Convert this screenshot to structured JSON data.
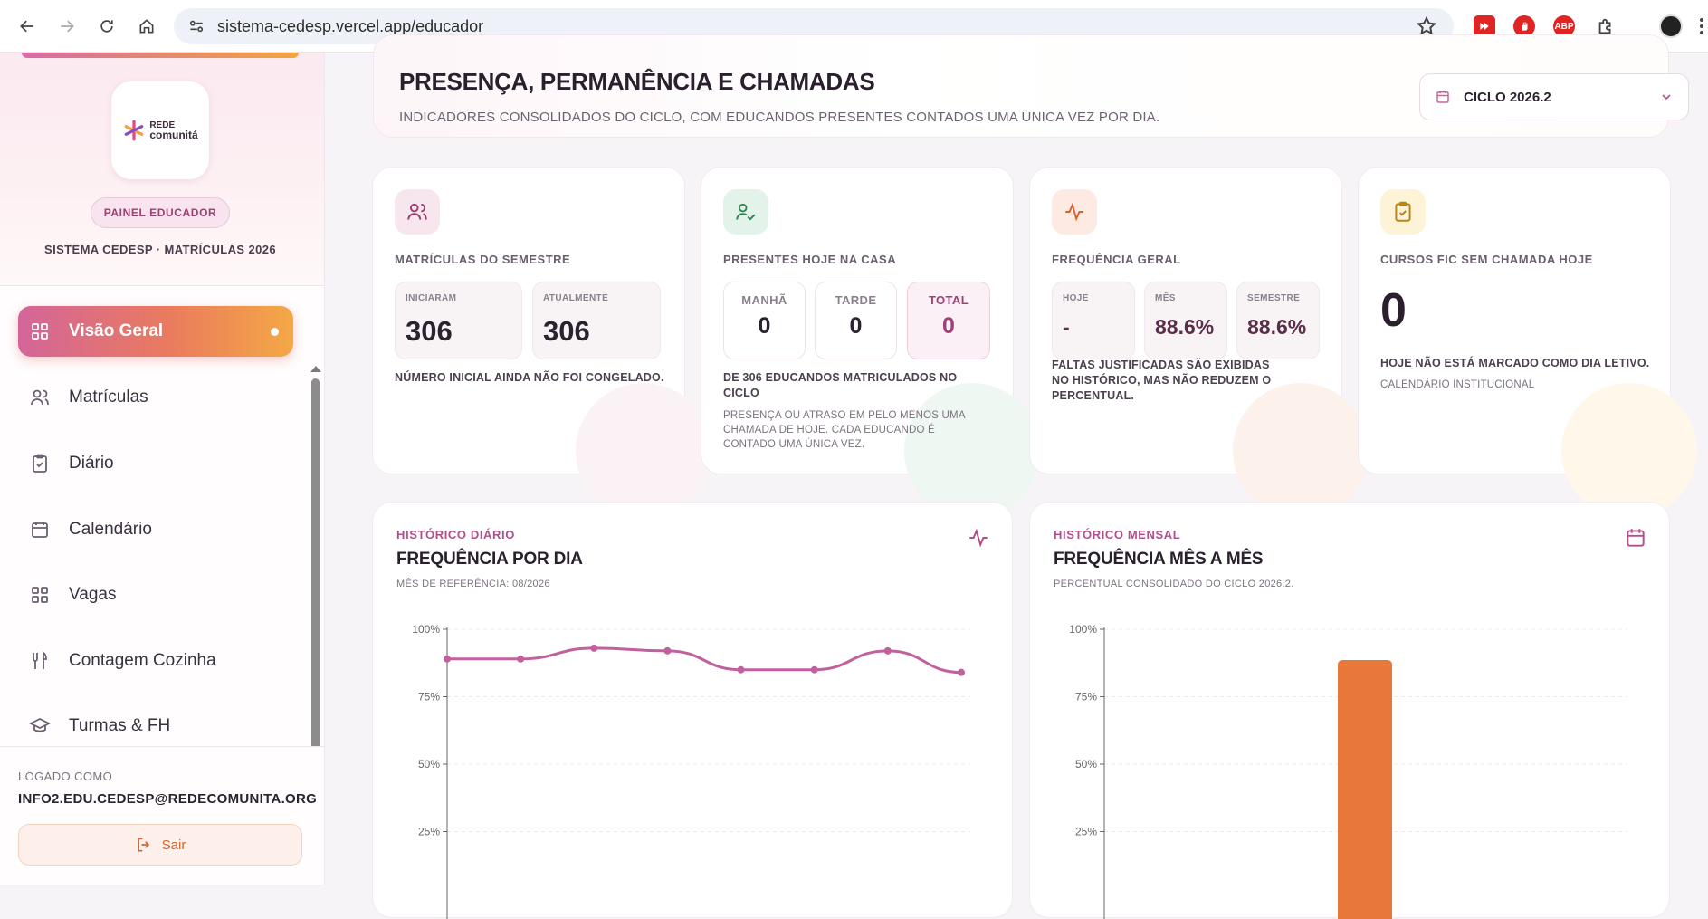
{
  "browser": {
    "url": "sistema-cedesp.vercel.app/educador",
    "extensions": [
      "video-ext-icon",
      "adblock-hand-icon",
      "abp-icon",
      "puzzle-icon"
    ],
    "abp_label": "ABP"
  },
  "sidebar": {
    "logo": {
      "line1": "REDE",
      "line2": "comunitá"
    },
    "badge": "PAINEL EDUCADOR",
    "system_label": "SISTEMA CEDESP · MATRÍCULAS 2026",
    "items": [
      {
        "label": "Visão Geral",
        "icon": "grid-icon",
        "active": true
      },
      {
        "label": "Matrículas",
        "icon": "users-icon"
      },
      {
        "label": "Diário",
        "icon": "clipboard-icon"
      },
      {
        "label": "Calendário",
        "icon": "calendar-icon"
      },
      {
        "label": "Vagas",
        "icon": "grid-icon"
      },
      {
        "label": "Contagem Cozinha",
        "icon": "utensils-icon"
      },
      {
        "label": "Turmas & FH",
        "icon": "graduation-cap-icon"
      }
    ],
    "logged_label": "LOGADO COMO",
    "logged_email": "INFO2.EDU.CEDESP@REDECOMUNITA.ORG",
    "logout_label": "Sair"
  },
  "header": {
    "title": "PRESENÇA, PERMANÊNCIA E CHAMADAS",
    "subtitle": "INDICADORES CONSOLIDADOS DO CICLO, COM EDUCANDOS PRESENTES CONTADOS UMA ÚNICA VEZ POR DIA.",
    "cycle_selected": "CICLO 2026.2"
  },
  "cards": {
    "matriculas": {
      "title": "MATRÍCULAS DO SEMESTRE",
      "start_label": "INICIARAM",
      "start_value": "306",
      "current_label": "ATUALMENTE",
      "current_value": "306",
      "note": "NÚMERO INICIAL AINDA NÃO FOI CONGELADO."
    },
    "presentes": {
      "title": "PRESENTES HOJE NA CASA",
      "morning_label": "MANHÃ",
      "morning_value": "0",
      "afternoon_label": "TARDE",
      "afternoon_value": "0",
      "total_label": "TOTAL",
      "total_value": "0",
      "note": "DE 306 EDUCANDOS MATRICULADOS NO CICLO",
      "small": "PRESENÇA OU ATRASO EM PELO MENOS UMA CHAMADA DE HOJE. CADA EDUCANDO É CONTADO UMA ÚNICA VEZ."
    },
    "frequencia": {
      "title": "FREQUÊNCIA GERAL",
      "today_label": "HOJE",
      "today_value": "-",
      "month_label": "MÊS",
      "month_value": "88.6%",
      "semester_label": "SEMESTRE",
      "semester_value": "88.6%",
      "note": "FALTAS JUSTIFICADAS SÃO EXIBIDAS NO HISTÓRICO, MAS NÃO REDUZEM O PERCENTUAL."
    },
    "cursos": {
      "title": "CURSOS FIC SEM CHAMADA HOJE",
      "value": "0",
      "note": "HOJE NÃO ESTÁ MARCADO COMO DIA LETIVO.",
      "small": "CALENDÁRIO INSTITUCIONAL"
    }
  },
  "charts": {
    "daily": {
      "kicker": "HISTÓRICO DIÁRIO",
      "title": "FREQUÊNCIA POR DIA",
      "subtitle": "MÊS DE REFERÊNCIA: 08/2026"
    },
    "monthly": {
      "kicker": "HISTÓRICO MENSAL",
      "title": "FREQUÊNCIA MÊS A MÊS",
      "subtitle": "PERCENTUAL CONSOLIDADO DO CICLO 2026.2."
    }
  },
  "chart_data": [
    {
      "type": "line",
      "title": "FREQUÊNCIA POR DIA",
      "y_ticks": [
        "100%",
        "75%",
        "50%",
        "25%"
      ],
      "ylim": [
        0,
        100
      ],
      "series": [
        {
          "values": [
            89,
            89,
            93,
            92,
            85,
            85,
            92,
            84
          ]
        }
      ],
      "color": "#c0619e"
    },
    {
      "type": "bar",
      "title": "FREQUÊNCIA MÊS A MÊS",
      "y_ticks": [
        "100%",
        "75%",
        "50%",
        "25%"
      ],
      "ylim": [
        0,
        100
      ],
      "values": [
        88.6
      ],
      "color": "#e8783a"
    }
  ]
}
